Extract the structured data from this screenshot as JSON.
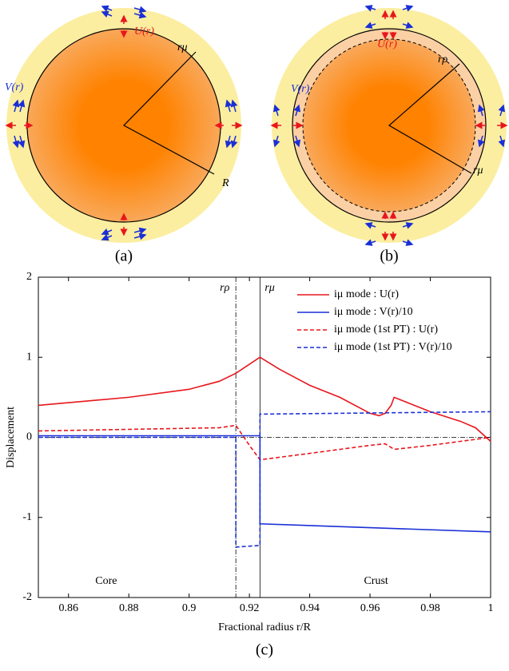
{
  "diagrams": [
    {
      "label": "(a)",
      "texts": [
        "U(r)",
        "V(r)",
        "rμ",
        "R"
      ]
    },
    {
      "label": "(b)",
      "texts": [
        "U(r)",
        "V(r)",
        "rρ",
        "rμ"
      ]
    }
  ],
  "chart_data": {
    "type": "line",
    "label": "(c)",
    "x_label": "Fractional radius r/R",
    "y_label": "Displacement",
    "xlim": [
      0.85,
      1.0
    ],
    "xticks": [
      0.86,
      0.88,
      0.9,
      0.92,
      0.94,
      0.96,
      0.98,
      1
    ],
    "ylim": [
      -2,
      2
    ],
    "yticks": [
      -2,
      -1,
      0,
      1,
      2
    ],
    "vlines": [
      {
        "x": 0.9155,
        "label": "rρ"
      },
      {
        "x": 0.9235,
        "label": "rμ"
      }
    ],
    "annotations": [
      "Core",
      "Crust"
    ],
    "legend": "upper right",
    "series": [
      {
        "name": "iμ mode : U(r)",
        "color": "#e8161c",
        "dash": false,
        "x": [
          0.85,
          0.88,
          0.9,
          0.91,
          0.9155,
          0.9235,
          0.93,
          0.94,
          0.95,
          0.96,
          0.963,
          0.965,
          0.967,
          0.968,
          0.97,
          0.98,
          0.99,
          0.995,
          1.0
        ],
        "values": [
          0.4,
          0.5,
          0.6,
          0.7,
          0.8,
          1.0,
          0.85,
          0.65,
          0.5,
          0.3,
          0.27,
          0.3,
          0.4,
          0.5,
          0.47,
          0.32,
          0.2,
          0.12,
          -0.05
        ]
      },
      {
        "name": "iμ mode : V(r)/10",
        "color": "#1a2fd6",
        "dash": false,
        "x": [
          0.85,
          0.9235,
          0.9235,
          1.0
        ],
        "values": [
          0.02,
          0.02,
          -1.08,
          -1.18
        ]
      },
      {
        "name": "iμ mode (1st PT) : U(r)",
        "color": "#e8161c",
        "dash": true,
        "x": [
          0.85,
          0.91,
          0.9155,
          0.92,
          0.9235,
          0.94,
          0.96,
          0.965,
          0.968,
          0.98,
          0.99,
          1.0
        ],
        "values": [
          0.08,
          0.12,
          0.15,
          -0.1,
          -0.28,
          -0.2,
          -0.1,
          -0.08,
          -0.15,
          -0.1,
          -0.05,
          0.0
        ]
      },
      {
        "name": "iμ mode (1st PT) : V(r)/10",
        "color": "#1a2fd6",
        "dash": true,
        "x": [
          0.85,
          0.9155,
          0.9155,
          0.9235,
          0.9235,
          1.0
        ],
        "values": [
          0.0,
          0.0,
          -1.37,
          -1.35,
          0.29,
          0.32
        ]
      }
    ]
  }
}
